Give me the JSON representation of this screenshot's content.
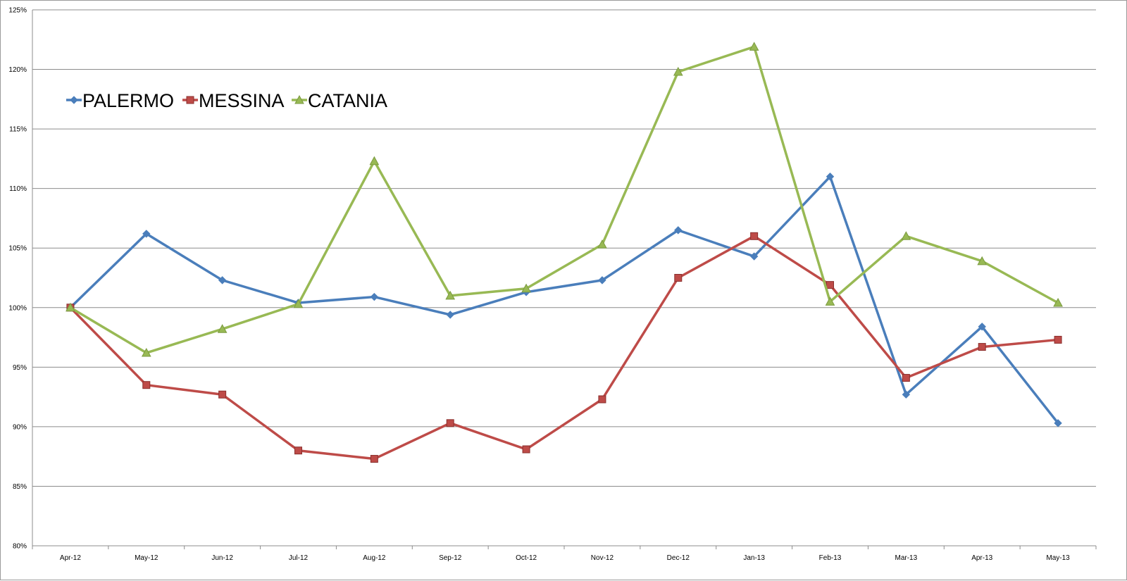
{
  "chart_data": {
    "type": "line",
    "title": "",
    "xlabel": "",
    "ylabel": "",
    "x": [
      "Apr-12",
      "May-12",
      "Jun-12",
      "Jul-12",
      "Aug-12",
      "Sep-12",
      "Oct-12",
      "Nov-12",
      "Dec-12",
      "Jan-13",
      "Feb-13",
      "Mar-13",
      "Apr-13",
      "May-13"
    ],
    "ylim": [
      80,
      125
    ],
    "yticks": [
      80,
      85,
      90,
      95,
      100,
      105,
      110,
      115,
      120,
      125
    ],
    "ytick_labels": [
      "80%",
      "85%",
      "90%",
      "95%",
      "100%",
      "105%",
      "110%",
      "115%",
      "120%",
      "125%"
    ],
    "grid": true,
    "legend_position": "top-left",
    "series": [
      {
        "name": "PALERMO",
        "color": "#4a7ebb",
        "marker": "diamond",
        "values": [
          100,
          106.2,
          102.3,
          100.4,
          100.9,
          99.4,
          101.3,
          102.3,
          106.5,
          104.3,
          111.0,
          92.7,
          98.4,
          90.3
        ]
      },
      {
        "name": "MESSINA",
        "color": "#be4b48",
        "marker": "square",
        "values": [
          100,
          93.5,
          92.7,
          88.0,
          87.3,
          90.3,
          88.1,
          92.3,
          102.5,
          106.0,
          101.9,
          94.1,
          96.7,
          97.3
        ]
      },
      {
        "name": "CATANIA",
        "color": "#98b954",
        "marker": "triangle",
        "values": [
          100,
          96.2,
          98.2,
          100.3,
          112.3,
          101.0,
          101.6,
          105.3,
          119.8,
          121.9,
          100.5,
          106.0,
          103.9,
          100.4
        ]
      }
    ]
  }
}
